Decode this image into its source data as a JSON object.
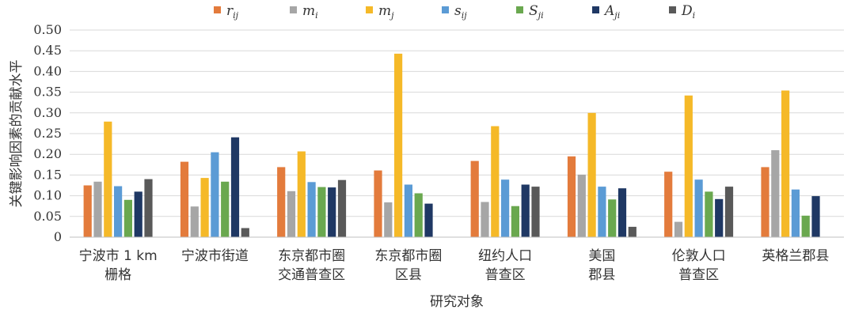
{
  "chart_data": {
    "type": "bar",
    "ylabel": "关键影响因素的贡献水平",
    "xlabel": "研究对象",
    "ylim": [
      0,
      0.5
    ],
    "yticks": [
      "0",
      "0.05",
      "0.10",
      "0.15",
      "0.20",
      "0.25",
      "0.30",
      "0.35",
      "0.40",
      "0.45",
      "0.50"
    ],
    "grid": true,
    "legend_position": "top",
    "categories": [
      [
        "宁波市 1 km",
        "栅格"
      ],
      [
        "宁波市街道"
      ],
      [
        "东京都市圈",
        "交通普查区"
      ],
      [
        "东京都市圈",
        "区县"
      ],
      [
        "纽约人口",
        "普查区"
      ],
      [
        "美国",
        "郡县"
      ],
      [
        "伦敦人口",
        "普查区"
      ],
      [
        "英格兰郡县"
      ]
    ],
    "series": [
      {
        "name": "r_ij",
        "symbol": "r",
        "sub": "ij",
        "color": "#e37b3c",
        "values": [
          0.125,
          0.182,
          0.169,
          0.161,
          0.184,
          0.195,
          0.158,
          0.169
        ]
      },
      {
        "name": "m_i",
        "symbol": "m",
        "sub": "i",
        "color": "#a6a6a6",
        "values": [
          0.134,
          0.074,
          0.111,
          0.084,
          0.085,
          0.151,
          0.037,
          0.21
        ]
      },
      {
        "name": "m_j",
        "symbol": "m",
        "sub": "j",
        "color": "#f5b928",
        "values": [
          0.279,
          0.143,
          0.207,
          0.443,
          0.268,
          0.3,
          0.342,
          0.354
        ]
      },
      {
        "name": "s_ij",
        "symbol": "s",
        "sub": "ij",
        "color": "#5b9bd5",
        "values": [
          0.123,
          0.205,
          0.133,
          0.127,
          0.139,
          0.122,
          0.139,
          0.115
        ]
      },
      {
        "name": "S_ji",
        "symbol": "S",
        "sub": "ji",
        "color": "#6aa84f",
        "values": [
          0.09,
          0.134,
          0.121,
          0.106,
          0.075,
          0.091,
          0.11,
          0.052
        ]
      },
      {
        "name": "A_ji",
        "symbol": "A",
        "sub": "ji",
        "color": "#1f3864",
        "values": [
          0.11,
          0.241,
          0.12,
          0.081,
          0.127,
          0.118,
          0.092,
          0.099
        ]
      },
      {
        "name": "D_i",
        "symbol": "D",
        "sub": "i",
        "color": "#595959",
        "values": [
          0.14,
          0.022,
          0.138,
          null,
          0.122,
          0.025,
          0.122,
          null
        ]
      }
    ]
  }
}
